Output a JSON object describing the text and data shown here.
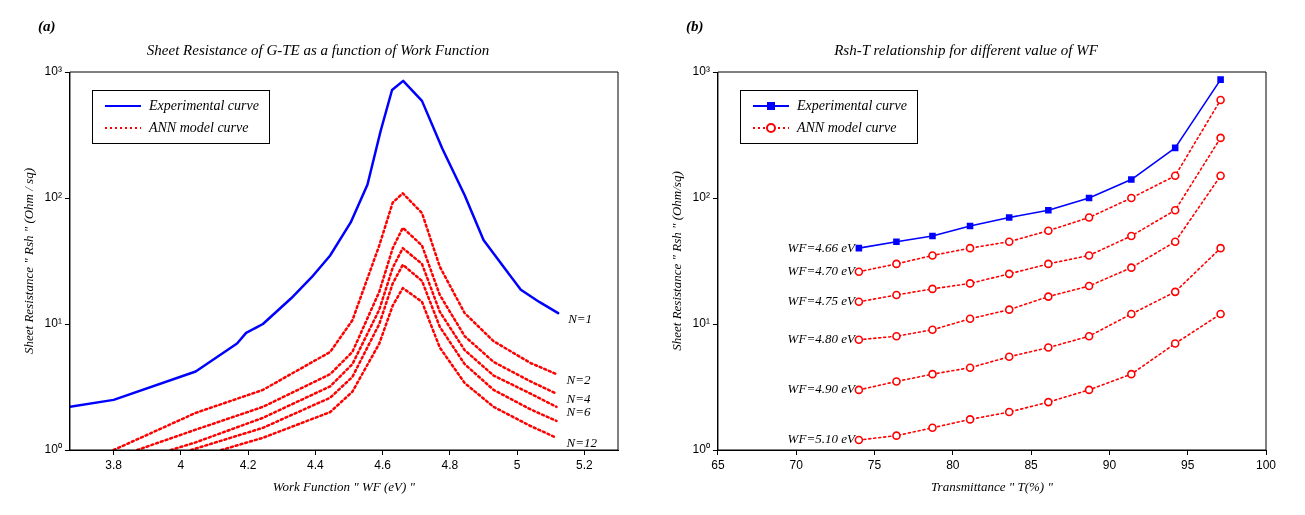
{
  "chart_data": [
    {
      "type": "line",
      "title": "Sheet Resistance of G-TE as a function of Work Function",
      "xlabel": "Work Function \" WF (eV) \"",
      "ylabel": "Sheet Resistance \" Rsh \" (Ohm / sq)",
      "annotations": [
        "(a)",
        {
          "text": "N=1",
          "x": 5.122,
          "y": 12.2
        },
        {
          "text": "N=2",
          "x": 5.117,
          "y": 4
        },
        {
          "text": "N=4",
          "x": 5.117,
          "y": 2.8
        },
        {
          "text": "N=6",
          "x": 5.117,
          "y": 2.2
        },
        {
          "text": "N=12",
          "x": 5.117,
          "y": 1.25
        }
      ],
      "series": [
        {
          "name": "Experimental curve",
          "color": "#0000ff",
          "line_style": "solid",
          "x": [
            3.67,
            3.8,
            4.044,
            4.167,
            4.194,
            4.244,
            4.328,
            4.389,
            4.444,
            4.505,
            4.555,
            4.594,
            4.628,
            4.661,
            4.717,
            4.778,
            4.844,
            4.9,
            4.955,
            5.011,
            5.067,
            5.122
          ],
          "values": [
            2.2,
            2.5,
            4.2,
            7,
            8.5,
            10,
            16,
            23.5,
            35,
            64,
            128,
            340,
            720,
            850,
            590,
            245,
            105,
            46.5,
            29.5,
            18.7,
            14.9,
            12.2
          ]
        },
        {
          "name": "ANN model curve",
          "color": "#ff0000",
          "line_style": "dotted",
          "x": [
            3.8,
            4.044,
            4.244,
            4.444,
            4.51,
            4.59,
            4.63,
            4.66,
            4.717,
            4.77,
            4.844,
            4.93,
            5.04,
            5.117
          ],
          "values": [
            1,
            1.97,
            3,
            6,
            10.7,
            42,
            92,
            109,
            76,
            28.5,
            12.2,
            7.3,
            4.9,
            4
          ]
        },
        {
          "color": "#ff0000",
          "line_style": "dotted",
          "x": [
            3.87,
            4.044,
            4.244,
            4.444,
            4.51,
            4.59,
            4.63,
            4.66,
            4.717,
            4.77,
            4.844,
            4.93,
            5.04,
            5.117
          ],
          "values": [
            1,
            1.45,
            2.2,
            4,
            6,
            18,
            40,
            58,
            42,
            17,
            8,
            5,
            3.5,
            2.8
          ]
        },
        {
          "color": "#ff0000",
          "line_style": "dotted",
          "x": [
            3.97,
            4.044,
            4.244,
            4.444,
            4.51,
            4.59,
            4.63,
            4.66,
            4.717,
            4.77,
            4.844,
            4.93,
            5.04,
            5.117
          ],
          "values": [
            1,
            1.15,
            1.8,
            3.2,
            4.8,
            13,
            28,
            40,
            30,
            12.5,
            6.2,
            3.9,
            2.8,
            2.2
          ]
        },
        {
          "color": "#ff0000",
          "line_style": "dotted",
          "x": [
            4.03,
            4.244,
            4.444,
            4.51,
            4.59,
            4.63,
            4.66,
            4.717,
            4.77,
            4.844,
            4.93,
            5.04,
            5.117
          ],
          "values": [
            1,
            1.5,
            2.6,
            3.8,
            10,
            21,
            29.5,
            22,
            9.5,
            4.8,
            3,
            2.1,
            1.7
          ]
        },
        {
          "color": "#ff0000",
          "line_style": "dotted",
          "x": [
            4.12,
            4.244,
            4.444,
            4.51,
            4.59,
            4.63,
            4.66,
            4.717,
            4.77,
            4.844,
            4.93,
            5.04,
            5.117
          ],
          "values": [
            1,
            1.25,
            2,
            2.9,
            7,
            14,
            19.3,
            15,
            6.5,
            3.4,
            2.2,
            1.55,
            1.25
          ]
        }
      ],
      "xlim": [
        3.67,
        5.3
      ],
      "xticks": [
        3.8,
        4,
        4.2,
        4.4,
        4.6,
        4.8,
        5,
        5.2
      ],
      "ylim": [
        1,
        1000
      ],
      "yticks": [
        {
          "value": 1,
          "label": "10⁰"
        },
        {
          "value": 10,
          "label": "10¹"
        },
        {
          "value": 100,
          "label": "10²"
        },
        {
          "value": 1000,
          "label": "10³"
        }
      ],
      "log": "y",
      "grid": false,
      "legend": "top left",
      "marker": "none"
    },
    {
      "type": "line",
      "title": "Rsh-T relationship for different value of WF",
      "xlabel": "Transmittance \" T(%) \"",
      "ylabel": "Sheet Resistance \" Rsh \" (Ohm/sq)",
      "annotations": [
        "(b)",
        {
          "text": "WF=4.66 eV",
          "x": 74,
          "y": 40
        },
        {
          "text": "WF=4.70 eV",
          "x": 74,
          "y": 26
        },
        {
          "text": "WF=4.75 eV",
          "x": 74,
          "y": 15
        },
        {
          "text": "WF=4.80 eV",
          "x": 74,
          "y": 7.5
        },
        {
          "text": "WF=4.90 eV",
          "x": 74,
          "y": 3
        },
        {
          "text": "WF=5.10 eV",
          "x": 74,
          "y": 1.2
        }
      ],
      "x": [
        74,
        76.4,
        78.7,
        81.1,
        83.6,
        86.1,
        88.7,
        91.4,
        94.2,
        97.1
      ],
      "series": [
        {
          "name": "Experimental curve",
          "color": "#0000ff",
          "line_style": "solid",
          "marker": "square",
          "values": [
            40,
            45,
            50,
            60,
            70,
            80,
            100,
            140,
            250,
            870
          ]
        },
        {
          "name": "ANN model curve",
          "color": "#ff0000",
          "line_style": "dotted",
          "marker": "circle",
          "values": [
            26,
            30,
            35,
            40,
            45,
            55,
            70,
            100,
            150,
            600
          ]
        },
        {
          "color": "#ff0000",
          "line_style": "dotted",
          "marker": "circle",
          "values": [
            15,
            17,
            19,
            21,
            25,
            30,
            35,
            50,
            80,
            300
          ]
        },
        {
          "color": "#ff0000",
          "line_style": "dotted",
          "marker": "circle",
          "values": [
            7.5,
            8,
            9,
            11,
            13,
            16.5,
            20,
            28,
            45,
            150
          ]
        },
        {
          "color": "#ff0000",
          "line_style": "dotted",
          "marker": "circle",
          "values": [
            3,
            3.5,
            4,
            4.5,
            5.5,
            6.5,
            8,
            12,
            18,
            40
          ]
        },
        {
          "color": "#ff0000",
          "line_style": "dotted",
          "marker": "circle",
          "values": [
            1.2,
            1.3,
            1.5,
            1.75,
            2,
            2.4,
            3,
            4,
            7,
            12
          ]
        }
      ],
      "xlim": [
        65,
        100
      ],
      "xticks": [
        65,
        70,
        75,
        80,
        85,
        90,
        95,
        100
      ],
      "ylim": [
        1,
        1000
      ],
      "yticks": [
        {
          "value": 1,
          "label": "10⁰"
        },
        {
          "value": 10,
          "label": "10¹"
        },
        {
          "value": 100,
          "label": "10²"
        },
        {
          "value": 1000,
          "label": "10³"
        }
      ],
      "log": "y",
      "grid": false,
      "legend": "top left"
    }
  ]
}
